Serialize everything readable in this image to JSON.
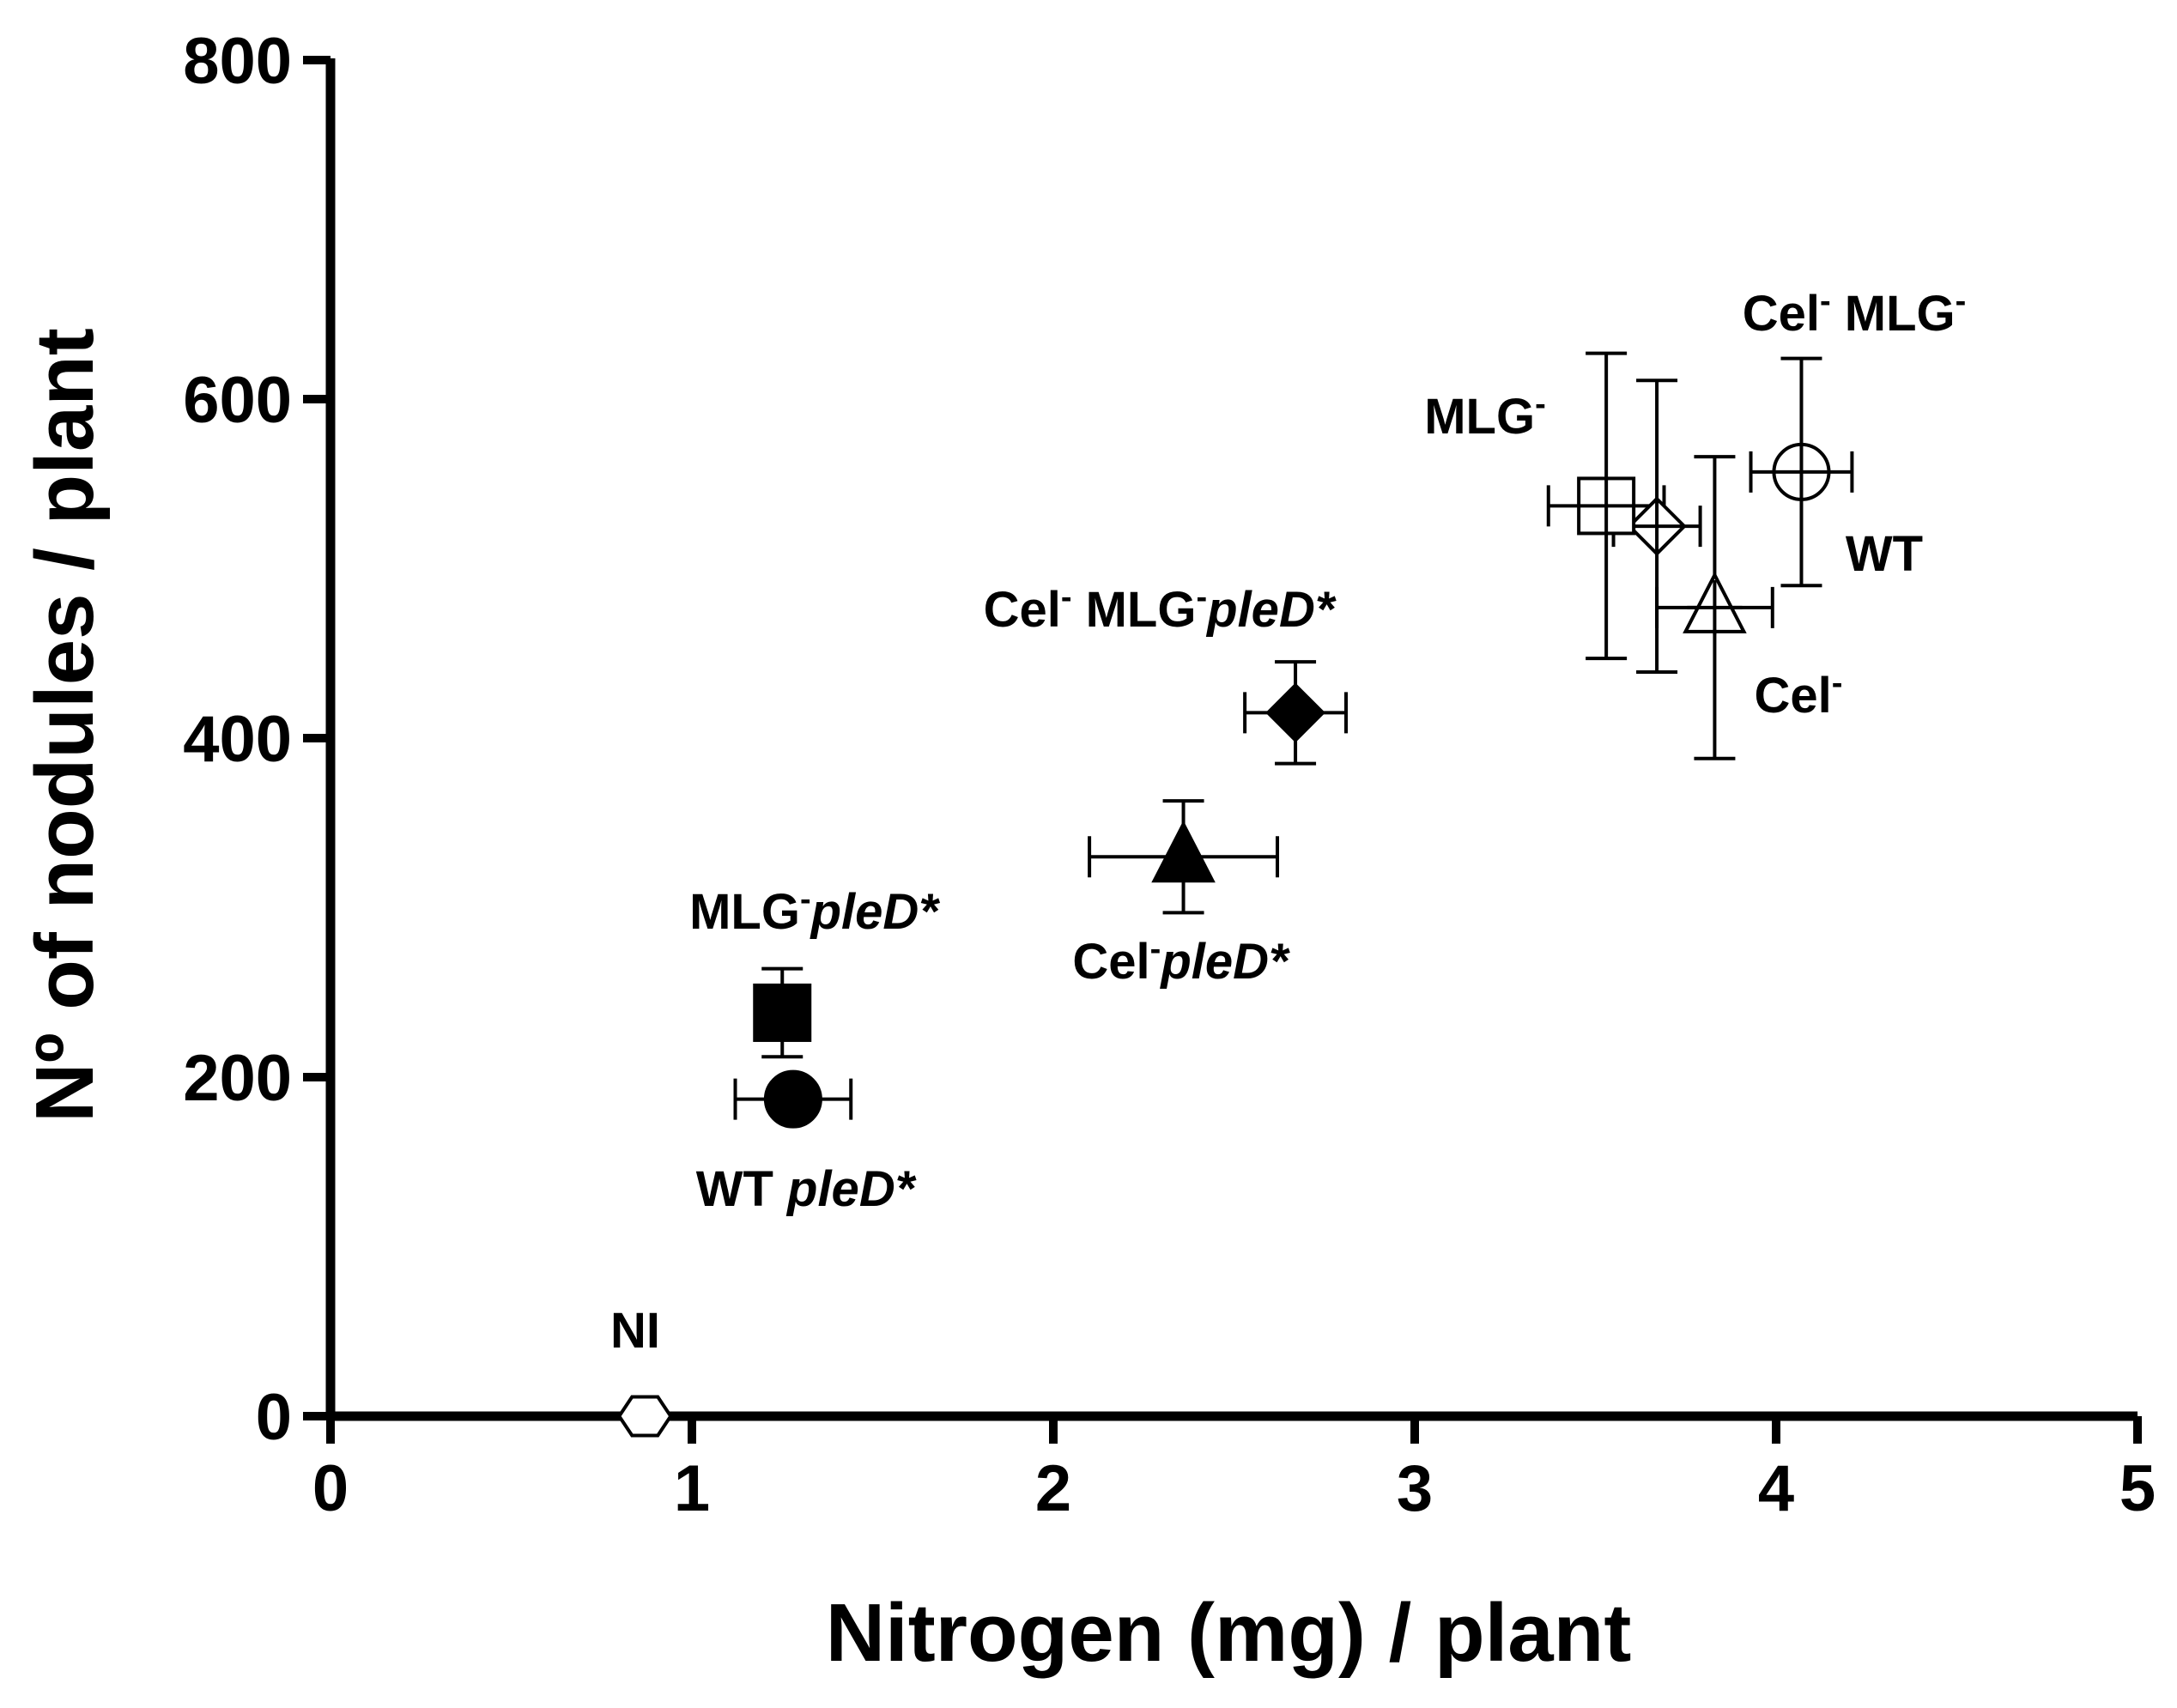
{
  "chart_data": {
    "type": "scatter",
    "title": "",
    "xlabel": "Nitrogen (mg) / plant",
    "ylabel": "Nº of nodules / plant",
    "xlim": [
      0,
      5
    ],
    "ylim": [
      0,
      800
    ],
    "x_ticks": [
      "0",
      "1",
      "2",
      "3",
      "4",
      "5"
    ],
    "y_ticks": [
      "0",
      "200",
      "400",
      "600",
      "800"
    ],
    "x_tick_values": [
      0,
      1,
      2,
      3,
      4,
      5
    ],
    "y_tick_values": [
      0,
      200,
      400,
      600,
      800
    ],
    "grid": false,
    "legend": "none",
    "points": [
      {
        "id": "wt",
        "label_parts": [
          {
            "t": "WT"
          }
        ],
        "marker": "circle",
        "filled": false,
        "x": 4.07,
        "y": 557,
        "x_err": 0.14,
        "y_err": 67
      },
      {
        "id": "cel-mlg",
        "label_parts": [
          {
            "t": "Cel"
          },
          {
            "t": "-",
            "sup": true
          },
          {
            "t": " MLG"
          },
          {
            "t": "-",
            "sup": true
          }
        ],
        "marker": "diamond",
        "filled": false,
        "x": 3.67,
        "y": 525,
        "x_err": 0.12,
        "y_err": 86
      },
      {
        "id": "mlg",
        "label_parts": [
          {
            "t": "MLG"
          },
          {
            "t": "-",
            "sup": true
          }
        ],
        "marker": "square",
        "filled": false,
        "x": 3.53,
        "y": 537,
        "x_err": 0.16,
        "y_err": 90
      },
      {
        "id": "cel",
        "label_parts": [
          {
            "t": "Cel"
          },
          {
            "t": "-",
            "sup": true
          }
        ],
        "marker": "triangle",
        "filled": false,
        "x": 3.83,
        "y": 477,
        "x_err": 0.16,
        "y_err": 89
      },
      {
        "id": "cel-mlg-pled",
        "label_parts": [
          {
            "t": "Cel"
          },
          {
            "t": "-",
            "sup": true
          },
          {
            "t": " MLG"
          },
          {
            "t": "-",
            "sup": true
          },
          {
            "t": "pleD*",
            "it": true
          }
        ],
        "marker": "diamond",
        "filled": true,
        "x": 2.67,
        "y": 415,
        "x_err": 0.14,
        "y_err": 30
      },
      {
        "id": "cel-pled",
        "label_parts": [
          {
            "t": "Cel"
          },
          {
            "t": "-",
            "sup": true
          },
          {
            "t": "pleD*",
            "it": true
          }
        ],
        "marker": "triangle",
        "filled": true,
        "x": 2.36,
        "y": 330,
        "x_err": 0.26,
        "y_err": 33
      },
      {
        "id": "mlg-pled",
        "label_parts": [
          {
            "t": "MLG"
          },
          {
            "t": "-",
            "sup": true
          },
          {
            "t": "pleD*",
            "it": true
          }
        ],
        "marker": "square",
        "filled": true,
        "x": 1.25,
        "y": 238,
        "x_err": 0,
        "y_err": 26
      },
      {
        "id": "wt-pled",
        "label_parts": [
          {
            "t": "WT "
          },
          {
            "t": "pleD*",
            "it": true
          }
        ],
        "marker": "circle",
        "filled": true,
        "x": 1.28,
        "y": 187,
        "x_err": 0.16,
        "y_err": 0
      },
      {
        "id": "ni",
        "label_parts": [
          {
            "t": "NI"
          }
        ],
        "marker": "hexagon",
        "filled": false,
        "x": 0.87,
        "y": 0,
        "x_err": 0,
        "y_err": 0
      }
    ]
  }
}
